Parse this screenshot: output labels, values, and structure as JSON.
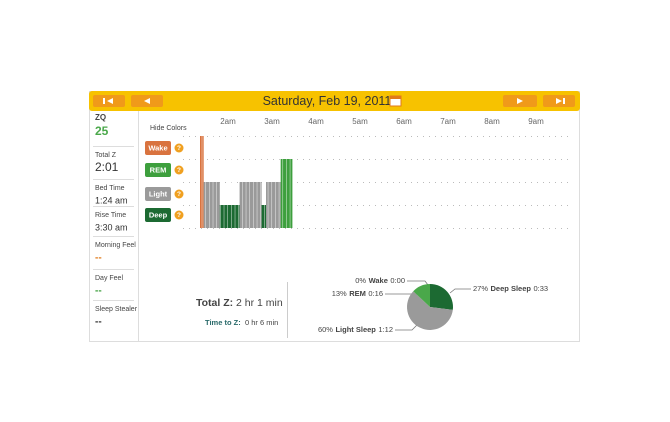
{
  "header": {
    "date": "Saturday, Feb 19, 2011"
  },
  "sidebar": [
    {
      "label": "ZQ",
      "value": "25"
    },
    {
      "label": "Total Z",
      "value": "2:01"
    },
    {
      "label": "Bed Time",
      "value": "1:24 am"
    },
    {
      "label": "Rise Time",
      "value": "3:30 am"
    },
    {
      "label": "Morning Feel",
      "value": "--"
    },
    {
      "label": "Day Feel",
      "value": "--"
    },
    {
      "label": "Sleep Stealer",
      "value": "--"
    }
  ],
  "hide_colors": "Hide Colors",
  "legend": [
    {
      "name": "Wake",
      "color": "#d9733f"
    },
    {
      "name": "REM",
      "color": "#3d9f3d"
    },
    {
      "name": "Light",
      "color": "#9a9a9a"
    },
    {
      "name": "Deep",
      "color": "#1c6a32"
    }
  ],
  "hypnogram": {
    "times": [
      "2am",
      "3am",
      "4am",
      "5am",
      "6am",
      "7am",
      "8am",
      "9am"
    ],
    "level": [
      4,
      2,
      1,
      2,
      1,
      2,
      3
    ],
    "minutes": [
      5,
      22,
      27,
      30,
      6,
      20,
      16
    ]
  },
  "summary": {
    "total_label": "Total Z:",
    "total_value": "2 hr 1 min",
    "ttz_label": "Time to Z:",
    "ttz_value": "0 hr 6 min"
  },
  "pie": {
    "slices": [
      {
        "percent": 0,
        "percent_label": "0%",
        "name": "Wake",
        "duration": "0:00",
        "color": "#d9733f"
      },
      {
        "percent": 27,
        "percent_label": "27%",
        "name": "Deep Sleep",
        "duration": "0:33",
        "color": "#1c6a32"
      },
      {
        "percent": 60,
        "percent_label": "60%",
        "name": "Light Sleep",
        "duration": "1:12",
        "color": "#9a9a9a"
      },
      {
        "percent": 13,
        "percent_label": "13%",
        "name": "REM",
        "duration": "0:16",
        "color": "#4aa84a"
      }
    ]
  }
}
